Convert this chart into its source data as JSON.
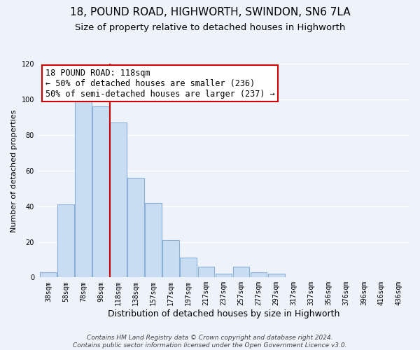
{
  "title": "18, POUND ROAD, HIGHWORTH, SWINDON, SN6 7LA",
  "subtitle": "Size of property relative to detached houses in Highworth",
  "xlabel": "Distribution of detached houses by size in Highworth",
  "ylabel": "Number of detached properties",
  "bar_labels": [
    "38sqm",
    "58sqm",
    "78sqm",
    "98sqm",
    "118sqm",
    "138sqm",
    "157sqm",
    "177sqm",
    "197sqm",
    "217sqm",
    "237sqm",
    "257sqm",
    "277sqm",
    "297sqm",
    "317sqm",
    "337sqm",
    "356sqm",
    "376sqm",
    "396sqm",
    "416sqm",
    "436sqm"
  ],
  "bar_values": [
    3,
    41,
    100,
    96,
    87,
    56,
    42,
    21,
    11,
    6,
    2,
    6,
    3,
    2,
    0,
    0,
    0,
    0,
    0,
    0,
    0
  ],
  "bar_color": "#c9ddf2",
  "bar_edge_color": "#8ab0d8",
  "vline_index": 4,
  "vline_color": "#cc0000",
  "ylim": [
    0,
    120
  ],
  "yticks": [
    0,
    20,
    40,
    60,
    80,
    100,
    120
  ],
  "annotation_line1": "18 POUND ROAD: 118sqm",
  "annotation_line2": "← 50% of detached houses are smaller (236)",
  "annotation_line3": "50% of semi-detached houses are larger (237) →",
  "annotation_box_color": "#ffffff",
  "annotation_box_edge": "#cc0000",
  "footer_line1": "Contains HM Land Registry data © Crown copyright and database right 2024.",
  "footer_line2": "Contains public sector information licensed under the Open Government Licence v3.0.",
  "background_color": "#eef2fa",
  "grid_color": "#ffffff",
  "title_fontsize": 11,
  "subtitle_fontsize": 9.5,
  "ylabel_fontsize": 8,
  "xlabel_fontsize": 9,
  "tick_fontsize": 7,
  "annotation_fontsize": 8.5,
  "footer_fontsize": 6.5
}
